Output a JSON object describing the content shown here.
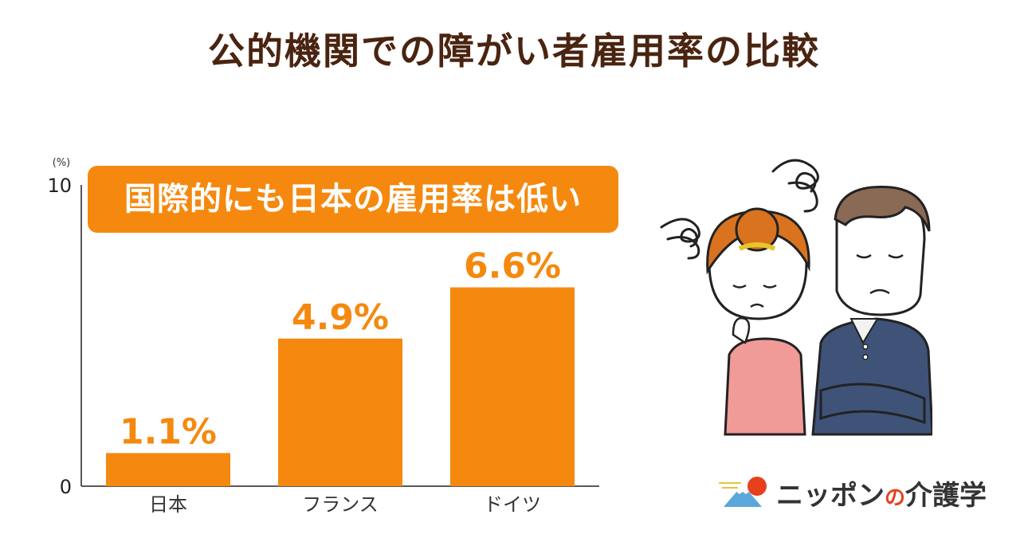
{
  "title": "公的機関での障がい者雇用率の比較",
  "callout": "国際的にも日本の雇用率は低い",
  "logo": {
    "part1": "ニッポン",
    "part2": "の",
    "part3": "介護学",
    "icon": "fuji-sun-icon"
  },
  "colors": {
    "bar": "#f5890f",
    "title": "#4a2410",
    "label": "#f5890f"
  },
  "chart_data": {
    "type": "bar",
    "title": "公的機関での障がい者雇用率の比較",
    "unit": "(%)",
    "categories": [
      "日本",
      "フランス",
      "ドイツ"
    ],
    "values": [
      1.1,
      4.9,
      6.6
    ],
    "value_labels": [
      "1.1%",
      "4.9%",
      "6.6%"
    ],
    "ylim": [
      0,
      10
    ],
    "yticks": [
      "0",
      "10"
    ],
    "grid": false,
    "legend": "none"
  }
}
